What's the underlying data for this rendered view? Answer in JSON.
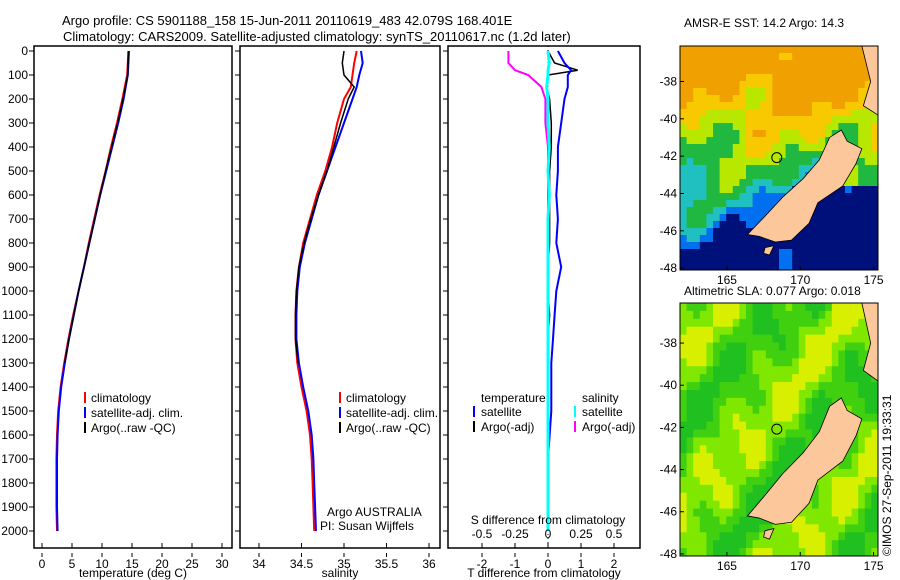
{
  "title_line1": "Argo profile: CS 5901188_158 15-Jun-2011 20110619_483 42.079S 168.401E",
  "title_line2": "Climatology: CARS2009. Satellite-adjusted climatology: synTS_20110617.nc (1.2d later)",
  "colors": {
    "climatology": "#ff0000",
    "satellite": "#0000ff",
    "argo": "#000000",
    "sal_satellite": "#00ffff",
    "sal_argo": "#ff00ff",
    "land": "#fcc89b"
  },
  "chart_data": [
    {
      "type": "line",
      "xlabel": "temperature (deg C)",
      "xlim": [
        -1,
        31
      ],
      "ylim": [
        2050,
        0
      ],
      "xticks": [
        "0",
        "5",
        "10",
        "15",
        "20",
        "25",
        "30"
      ],
      "yticks": [
        "0",
        "100",
        "200",
        "300",
        "400",
        "500",
        "600",
        "700",
        "800",
        "900",
        "1000",
        "1100",
        "1200",
        "1300",
        "1400",
        "1500",
        "1600",
        "1700",
        "1800",
        "1900",
        "2000"
      ],
      "legend": [
        "climatology",
        "satellite-adj. clim.",
        "Argo(..raw -QC)"
      ],
      "depth": [
        0,
        100,
        200,
        300,
        400,
        500,
        600,
        700,
        800,
        900,
        1000,
        1100,
        1200,
        1300,
        1400,
        1500,
        1600,
        1700,
        1800,
        1900,
        2000
      ],
      "series": [
        {
          "name": "climatology",
          "values": [
            14.4,
            14.2,
            13.4,
            12.5,
            11.5,
            10.6,
            9.6,
            8.7,
            7.8,
            7.0,
            6.1,
            5.2,
            4.4,
            3.7,
            3.1,
            2.7,
            2.5,
            2.4,
            2.4,
            2.4,
            2.5
          ]
        },
        {
          "name": "satellite-adj. clim.",
          "values": [
            14.5,
            14.3,
            13.6,
            12.7,
            11.7,
            10.7,
            9.7,
            8.8,
            7.9,
            7.0,
            6.1,
            5.3,
            4.5,
            3.8,
            3.2,
            2.8,
            2.6,
            2.5,
            2.5,
            2.5,
            2.6
          ]
        },
        {
          "name": "Argo(..raw -QC)",
          "values": [
            14.4,
            14.3,
            13.5,
            12.6,
            11.6,
            10.6,
            9.7,
            8.8,
            7.9,
            7.0,
            6.1,
            5.3,
            4.5,
            3.8,
            null,
            null,
            null,
            null,
            null,
            null,
            null
          ]
        }
      ]
    },
    {
      "type": "line",
      "xlabel": "salinity",
      "xlim": [
        33.8,
        36.1
      ],
      "ylim": [
        2050,
        0
      ],
      "xticks": [
        "34",
        "34.5",
        "35",
        "35.5",
        "36"
      ],
      "legend": [
        "climatology",
        "satellite-adj. clim.",
        "Argo(..raw -QC)"
      ],
      "annotation": [
        "Argo AUSTRALIA",
        "PI: Susan Wijffels"
      ],
      "depth": [
        0,
        50,
        100,
        150,
        200,
        300,
        400,
        500,
        600,
        700,
        800,
        900,
        1000,
        1100,
        1200,
        1300,
        1400,
        1500,
        1600,
        1700,
        1800,
        1900,
        2000
      ],
      "series": [
        {
          "name": "climatology",
          "values": [
            35.15,
            35.12,
            35.1,
            35.08,
            35.0,
            34.92,
            34.86,
            34.78,
            34.68,
            34.6,
            34.52,
            34.47,
            34.44,
            34.43,
            34.43,
            34.45,
            34.5,
            34.56,
            34.6,
            34.62,
            34.63,
            34.64,
            34.65
          ]
        },
        {
          "name": "satellite-adj. clim.",
          "values": [
            35.2,
            35.22,
            35.18,
            35.15,
            35.1,
            35.0,
            34.9,
            34.8,
            34.7,
            34.62,
            34.54,
            34.48,
            34.45,
            34.44,
            34.44,
            34.47,
            34.52,
            34.58,
            34.62,
            34.64,
            34.65,
            34.66,
            34.67
          ]
        },
        {
          "name": "Argo(..raw -QC)",
          "values": [
            35.0,
            34.98,
            35.0,
            35.12,
            35.05,
            34.96,
            34.88,
            34.8,
            34.7,
            34.61,
            34.53,
            34.47,
            34.44,
            34.43,
            34.43,
            34.46,
            null,
            null,
            null,
            null,
            null,
            null,
            null
          ]
        }
      ]
    },
    {
      "type": "line",
      "xlabel": "T difference from climatology",
      "xlabel2": "S difference from climatology",
      "xlim": [
        -3,
        3
      ],
      "ylim": [
        2050,
        0
      ],
      "xticks": [
        "-2",
        "-1",
        "0",
        "1",
        "2"
      ],
      "xticks2": [
        "-0.5",
        "-0.25",
        "0",
        "0.25",
        "0.5"
      ],
      "legend_headers": [
        "temperature",
        "salinity"
      ],
      "legend": [
        "satellite",
        "Argo(-adj)",
        "satellite",
        "Argo(-adj)"
      ],
      "depth": [
        0,
        50,
        80,
        100,
        150,
        200,
        300,
        400,
        500,
        600,
        700,
        800,
        900,
        1000,
        1100,
        1200,
        1300,
        1500,
        1700,
        2000
      ],
      "series": [
        {
          "name": "T satellite",
          "values": [
            0.3,
            0.5,
            0.7,
            0.6,
            0.6,
            0.5,
            0.4,
            0.3,
            0.3,
            0.25,
            0.3,
            0.25,
            0.4,
            0.25,
            0.2,
            0.15,
            0.1,
            0.1,
            0.0,
            0.0
          ]
        },
        {
          "name": "T Argo(-adj)",
          "values": [
            0.0,
            0.2,
            0.9,
            0.0,
            -0.05,
            0.05,
            0.1,
            0.1,
            0.05,
            0.05,
            0.05,
            0.05,
            0.0,
            0.0,
            0.05,
            0.0,
            0.0,
            null,
            null,
            null
          ]
        },
        {
          "name": "S satellite",
          "values": [
            0.0,
            0.01,
            0.0,
            0.0,
            -0.01,
            0.0,
            0.0,
            0.01,
            0.0,
            0.01,
            0.0,
            0.0,
            0.0,
            0.0,
            0.0,
            0.0,
            0.0,
            0.0,
            0.0,
            0.0
          ]
        },
        {
          "name": "S Argo(-adj)",
          "values": [
            -0.3,
            -0.3,
            -0.25,
            -0.15,
            -0.05,
            -0.02,
            -0.02,
            0.0,
            0.0,
            0.0,
            0.0,
            0.0,
            0.0,
            0.0,
            0.0,
            0.0,
            0.0,
            null,
            null,
            null
          ]
        }
      ]
    }
  ],
  "maps": [
    {
      "title": "AMSR-E SST: 14.2 Argo: 14.3",
      "xticks": [
        "165",
        "170",
        "175"
      ],
      "yticks": [
        "-38",
        "-40",
        "-42",
        "-44",
        "-46",
        "-48"
      ]
    },
    {
      "title": "Altimetric SLA: 0.077 Argo: 0.018",
      "xticks": [
        "165",
        "170",
        "175"
      ],
      "yticks": [
        "-38",
        "-40",
        "-42",
        "-44",
        "-46",
        "-48"
      ]
    }
  ],
  "credit": "©IMOS 27-Sep-2011 19:33:31"
}
